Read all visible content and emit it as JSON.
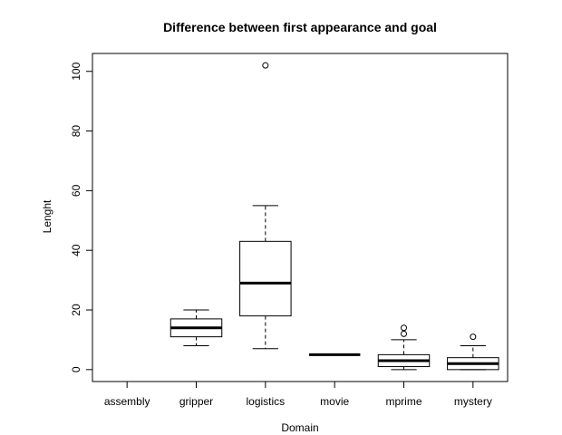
{
  "chart_data": {
    "type": "boxplot",
    "title": "Difference between first appearance and goal",
    "xlabel": "Domain",
    "ylabel": "Lenght",
    "ylim": [
      -4,
      106
    ],
    "yticks": [
      0,
      20,
      40,
      60,
      80,
      100
    ],
    "categories": [
      "assembly",
      "gripper",
      "logistics",
      "movie",
      "mprime",
      "mystery"
    ],
    "boxes": [
      {
        "category": "assembly",
        "min": null,
        "q1": null,
        "median": null,
        "q3": null,
        "max": null,
        "outliers": []
      },
      {
        "category": "gripper",
        "min": 8,
        "q1": 11,
        "median": 14,
        "q3": 17,
        "max": 20,
        "outliers": []
      },
      {
        "category": "logistics",
        "min": 7,
        "q1": 18,
        "median": 29,
        "q3": 43,
        "max": 55,
        "outliers": [
          102
        ]
      },
      {
        "category": "movie",
        "min": 5,
        "q1": 5,
        "median": 5,
        "q3": 5,
        "max": 5,
        "outliers": []
      },
      {
        "category": "mprime",
        "min": 0,
        "q1": 1,
        "median": 3,
        "q3": 5,
        "max": 10,
        "outliers": [
          12,
          14
        ]
      },
      {
        "category": "mystery",
        "min": 0,
        "q1": 0,
        "median": 2,
        "q3": 4,
        "max": 8,
        "outliers": [
          11
        ]
      }
    ]
  }
}
